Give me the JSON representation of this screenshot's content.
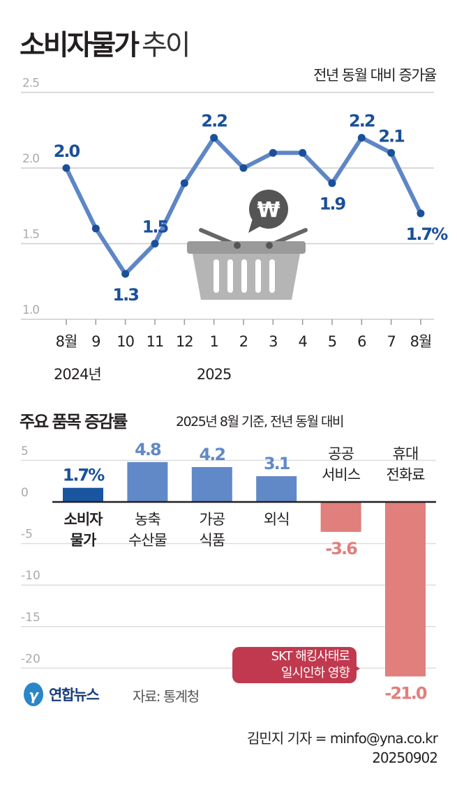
{
  "title_bold": "소비자물가",
  "title_light": "추이",
  "subtitle": "전년 동월 대비 증가율",
  "colors": {
    "line": "#5e86c6",
    "label": "#1a4f9a",
    "bar_main": "#1a56a0",
    "bar_pos": "#6189c8",
    "bar_neg": "#e07f7c",
    "callout": "#c0394f"
  },
  "chart_data": [
    {
      "type": "line",
      "title": "소비자물가 추이",
      "ylabel": "전년 동월 대비 증가율",
      "ylim": [
        1.0,
        2.5
      ],
      "yticks": [
        "1.0",
        "1.5",
        "2.0",
        "2.5"
      ],
      "categories": [
        "8월",
        "9",
        "10",
        "11",
        "12",
        "1",
        "2",
        "3",
        "4",
        "5",
        "6",
        "7",
        "8월"
      ],
      "year_labels": [
        {
          "index": 0,
          "label": "2024년"
        },
        {
          "index": 5,
          "label": "2025"
        }
      ],
      "values": [
        2.0,
        1.6,
        1.3,
        1.5,
        1.9,
        2.2,
        2.0,
        2.1,
        2.1,
        1.9,
        2.2,
        2.1,
        1.7
      ],
      "data_labels": [
        {
          "index": 0,
          "text": "2.0",
          "pos": "above"
        },
        {
          "index": 2,
          "text": "1.3",
          "pos": "below"
        },
        {
          "index": 3,
          "text": "1.5",
          "pos": "above"
        },
        {
          "index": 5,
          "text": "2.2",
          "pos": "above"
        },
        {
          "index": 9,
          "text": "1.9",
          "pos": "below"
        },
        {
          "index": 10,
          "text": "2.2",
          "pos": "above"
        },
        {
          "index": 11,
          "text": "2.1",
          "pos": "above"
        },
        {
          "index": 12,
          "text": "1.7%",
          "pos": "below"
        }
      ],
      "grid": true
    },
    {
      "type": "bar",
      "title": "주요 품목 증감률",
      "subtitle": "2025년 8월 기준, 전년 동월 대비",
      "ylim": [
        -21,
        5
      ],
      "yticks": [
        5,
        0,
        -5,
        -10,
        -15,
        -20
      ],
      "categories": [
        [
          "소비자",
          "물가"
        ],
        [
          "농축",
          "수산물"
        ],
        [
          "가공",
          "식품"
        ],
        [
          "외식"
        ],
        [
          "공공",
          "서비스"
        ],
        [
          "휴대",
          "전화료"
        ]
      ],
      "values": [
        1.7,
        4.8,
        4.2,
        3.1,
        -3.6,
        -21.0
      ],
      "data_labels": [
        "1.7%",
        "4.8",
        "4.2",
        "3.1",
        "-3.6",
        "-21.0"
      ],
      "annotation": "SKT 해킹사태로 일시인하 영향"
    }
  ],
  "callout": {
    "line1": "SKT 해킹사태로",
    "line2": "일시인하 영향"
  },
  "logo": "연합뉴스",
  "source": "자료: 통계청",
  "credit": "김민지 기자 = minfo@yna.co.kr",
  "date": "20250902"
}
